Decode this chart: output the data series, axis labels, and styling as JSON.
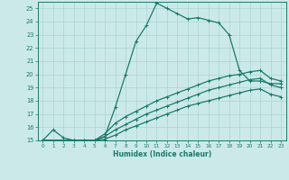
{
  "xlabel": "Humidex (Indice chaleur)",
  "ylabel": "",
  "background_color": "#cce9e9",
  "grid_color": "#aad4d4",
  "line_color": "#1a7a6a",
  "xlim": [
    -0.5,
    23.5
  ],
  "ylim": [
    15,
    25.5
  ],
  "xticks": [
    0,
    1,
    2,
    3,
    4,
    5,
    6,
    7,
    8,
    9,
    10,
    11,
    12,
    13,
    14,
    15,
    16,
    17,
    18,
    19,
    20,
    21,
    22,
    23
  ],
  "yticks": [
    15,
    16,
    17,
    18,
    19,
    20,
    21,
    22,
    23,
    24,
    25
  ],
  "lines": [
    {
      "x": [
        0,
        1,
        2,
        3,
        4,
        5,
        6,
        7,
        8,
        9,
        10,
        11,
        12,
        13,
        14,
        15,
        16,
        17,
        18,
        19,
        20,
        21,
        22,
        23
      ],
      "y": [
        15,
        15.8,
        15.2,
        15,
        15,
        15,
        15.3,
        17.5,
        20.0,
        22.5,
        23.7,
        25.4,
        25.0,
        24.6,
        24.2,
        24.3,
        24.1,
        23.9,
        23.0,
        20.3,
        19.5,
        19.5,
        19.3,
        19.3
      ]
    },
    {
      "x": [
        0,
        3,
        4,
        5,
        6,
        7,
        8,
        9,
        10,
        11,
        12,
        13,
        14,
        15,
        16,
        17,
        18,
        19,
        20,
        21,
        22,
        23
      ],
      "y": [
        15,
        15,
        15,
        15,
        15.5,
        16.3,
        16.8,
        17.2,
        17.6,
        18.0,
        18.3,
        18.6,
        18.9,
        19.2,
        19.5,
        19.7,
        19.9,
        20.0,
        20.2,
        20.3,
        19.7,
        19.5
      ]
    },
    {
      "x": [
        0,
        3,
        4,
        5,
        6,
        7,
        8,
        9,
        10,
        11,
        12,
        13,
        14,
        15,
        16,
        17,
        18,
        19,
        20,
        21,
        22,
        23
      ],
      "y": [
        15,
        15,
        15,
        15,
        15.3,
        15.8,
        16.2,
        16.6,
        17.0,
        17.3,
        17.6,
        17.9,
        18.2,
        18.5,
        18.8,
        19.0,
        19.2,
        19.4,
        19.6,
        19.7,
        19.2,
        19.0
      ]
    },
    {
      "x": [
        0,
        3,
        4,
        5,
        6,
        7,
        8,
        9,
        10,
        11,
        12,
        13,
        14,
        15,
        16,
        17,
        18,
        19,
        20,
        21,
        22,
        23
      ],
      "y": [
        15,
        15,
        15,
        15,
        15.1,
        15.4,
        15.8,
        16.1,
        16.4,
        16.7,
        17.0,
        17.3,
        17.6,
        17.8,
        18.0,
        18.2,
        18.4,
        18.6,
        18.8,
        18.9,
        18.5,
        18.3
      ]
    }
  ],
  "marker": "+",
  "marker_size": 3,
  "line_width": 0.9
}
